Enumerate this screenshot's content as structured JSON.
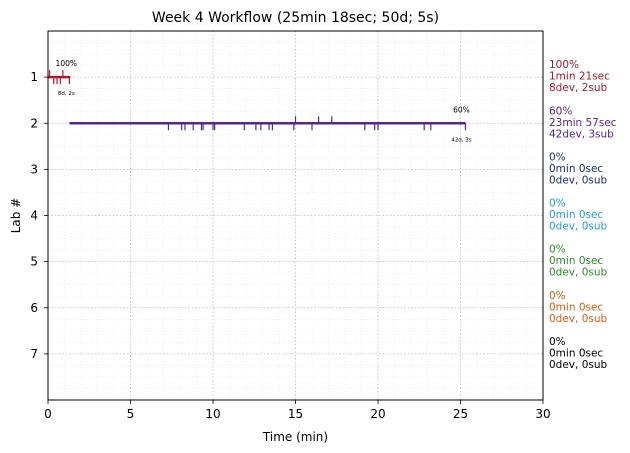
{
  "chart_data": {
    "type": "timeline",
    "title": "Week 4 Workflow (25min 18sec; 50d; 5s)",
    "xlabel": "Time (min)",
    "ylabel": "Lab #",
    "xlim": [
      0,
      30
    ],
    "ylim": [
      8,
      0
    ],
    "x_ticks": [
      0,
      5,
      10,
      15,
      20,
      25,
      30
    ],
    "y_ticks": [
      1,
      2,
      3,
      4,
      5,
      6,
      7
    ],
    "grid": true,
    "minor_grid": true,
    "series": [
      {
        "lab": 1,
        "color": "#b2182b",
        "start": 0.0,
        "end": 1.35,
        "percent": "100%",
        "counts": "8d, 2s",
        "side_lines": [
          "100%",
          "1min 21sec",
          "8dev, 2sub"
        ],
        "ticks_down": [
          0.35,
          0.55,
          0.75,
          1.3
        ],
        "ticks_up": [
          0.1,
          0.9
        ]
      },
      {
        "lab": 2,
        "color": "#54278f",
        "start": 1.3,
        "end": 25.3,
        "percent": "60%",
        "counts": "42d, 3s",
        "side_lines": [
          "60%",
          "23min 57sec",
          "42dev, 3sub"
        ],
        "ticks_down": [
          7.3,
          8.1,
          8.3,
          8.8,
          9.3,
          9.4,
          10.0,
          10.1,
          11.9,
          12.6,
          12.9,
          13.4,
          13.6,
          14.9,
          16.0,
          19.2,
          19.8,
          20.0,
          22.8,
          23.2,
          25.3
        ],
        "ticks_up": [
          15.0,
          16.4,
          17.2
        ]
      },
      {
        "lab": 3,
        "color": "#1f2a6b",
        "side_lines": [
          "0%",
          "0min 0sec",
          "0dev, 0sub"
        ]
      },
      {
        "lab": 4,
        "color": "#1f9fd6",
        "side_lines": [
          "0%",
          "0min 0sec",
          "0dev, 0sub"
        ]
      },
      {
        "lab": 5,
        "color": "#2e8b2e",
        "side_lines": [
          "0%",
          "0min 0sec",
          "0dev, 0sub"
        ]
      },
      {
        "lab": 6,
        "color": "#e05a10",
        "side_lines": [
          "0%",
          "0min 0sec",
          "0dev, 0sub"
        ]
      },
      {
        "lab": 7,
        "color": "#000000",
        "side_lines": [
          "0%",
          "0min 0sec",
          "0dev, 0sub"
        ]
      }
    ]
  }
}
